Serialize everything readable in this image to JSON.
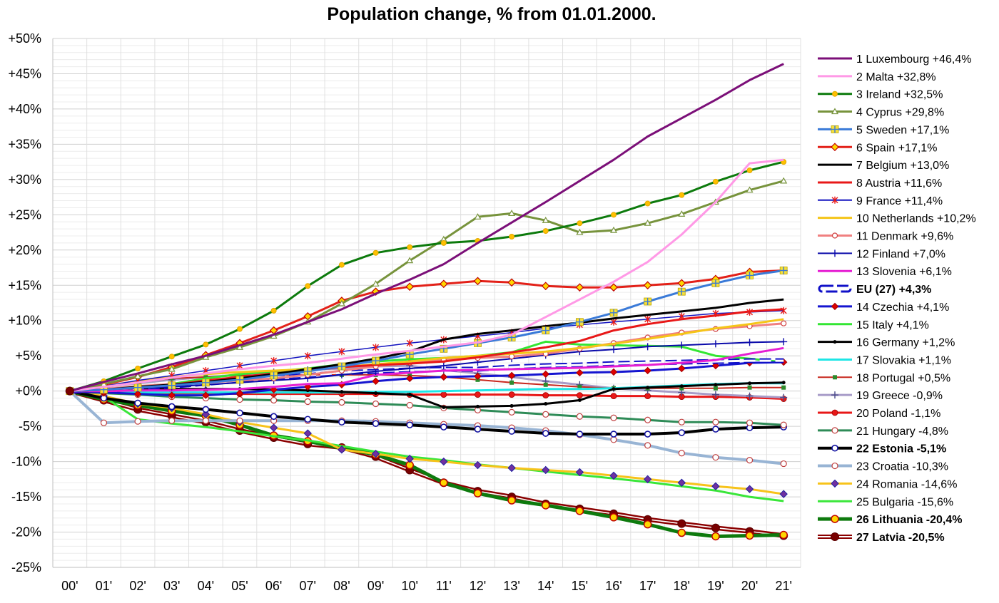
{
  "chart_data": {
    "type": "line",
    "title": "Population change, % from 01.01.2000.",
    "xlabel": "",
    "ylabel": "",
    "categories": [
      "00'",
      "01'",
      "02'",
      "03'",
      "04'",
      "05'",
      "06'",
      "07'",
      "08'",
      "09'",
      "10'",
      "11'",
      "12'",
      "13'",
      "14'",
      "15'",
      "16'",
      "17'",
      "18'",
      "19'",
      "20'",
      "21'"
    ],
    "ylim": [
      -25,
      50
    ],
    "yticks": [
      "+50%",
      "+45%",
      "+40%",
      "+35%",
      "+30%",
      "+25%",
      "+20%",
      "+15%",
      "+10%",
      "+5%",
      "+0%",
      "-5%",
      "-10%",
      "-15%",
      "-20%",
      "-25%"
    ],
    "grid": true,
    "legend_position": "right",
    "series": [
      {
        "label": "1 Luxembourg +46,4%",
        "color": "#7b0f78",
        "marker": "none",
        "width": 3,
        "values": [
          0,
          1.3,
          2.5,
          3.8,
          5.0,
          6.5,
          8.0,
          9.8,
          11.6,
          13.8,
          15.8,
          18.0,
          21.0,
          23.9,
          26.8,
          29.8,
          32.8,
          36.1,
          38.7,
          41.3,
          44.1,
          46.4
        ]
      },
      {
        "label": "2 Malta +32,8%",
        "color": "#ff99e6",
        "marker": "none",
        "width": 3,
        "values": [
          0,
          0.6,
          1.2,
          1.9,
          2.5,
          3.1,
          3.6,
          4.0,
          4.6,
          5.2,
          5.7,
          6.3,
          6.9,
          8.0,
          10.5,
          13.0,
          15.5,
          18.3,
          22.2,
          26.8,
          32.3,
          32.8
        ]
      },
      {
        "label": "3 Ireland +32,5%",
        "color": "#0c7a0c",
        "marker": "circle-yellow",
        "width": 3,
        "values": [
          0,
          1.4,
          3.2,
          4.9,
          6.6,
          8.8,
          11.4,
          14.9,
          17.9,
          19.6,
          20.4,
          21.0,
          21.3,
          21.9,
          22.7,
          23.8,
          25.0,
          26.6,
          27.8,
          29.7,
          31.3,
          32.5
        ]
      },
      {
        "label": "4 Cyprus +29,8%",
        "color": "#77933c",
        "marker": "triangle",
        "width": 3,
        "values": [
          0,
          1.0,
          2.1,
          3.1,
          4.8,
          6.2,
          7.8,
          9.8,
          12.4,
          15.2,
          18.5,
          21.5,
          24.7,
          25.2,
          24.2,
          22.5,
          22.8,
          23.8,
          25.1,
          26.8,
          28.5,
          29.8
        ]
      },
      {
        "label": "5 Sweden +17,1%",
        "color": "#3a7ad8",
        "marker": "square-plus",
        "width": 3,
        "values": [
          0,
          0.2,
          0.5,
          0.8,
          1.2,
          1.6,
          2.2,
          2.8,
          3.5,
          4.3,
          5.2,
          6.0,
          6.8,
          7.6,
          8.6,
          9.8,
          11.1,
          12.7,
          14.1,
          15.3,
          16.4,
          17.1
        ]
      },
      {
        "label": "6 Spain +17,1%",
        "color": "#e32119",
        "marker": "diamond-yellow",
        "width": 3,
        "values": [
          0,
          0.9,
          2.0,
          3.4,
          5.1,
          6.8,
          8.6,
          10.6,
          12.8,
          14.1,
          14.8,
          15.2,
          15.6,
          15.4,
          14.9,
          14.7,
          14.7,
          15.0,
          15.3,
          15.9,
          16.9,
          17.1
        ]
      },
      {
        "label": "7 Belgium +13,0%",
        "color": "#000000",
        "marker": "none",
        "width": 3,
        "values": [
          0,
          0.2,
          0.6,
          0.9,
          1.3,
          1.8,
          2.4,
          3.1,
          3.8,
          4.6,
          5.6,
          7.3,
          8.1,
          8.6,
          9.2,
          9.7,
          10.3,
          10.8,
          11.3,
          11.8,
          12.5,
          13.0
        ]
      },
      {
        "label": "8 Austria +11,6%",
        "color": "#e81818",
        "marker": "none",
        "width": 3,
        "values": [
          0,
          0.2,
          0.5,
          0.9,
          1.5,
          2.0,
          2.5,
          2.9,
          3.4,
          3.7,
          3.9,
          4.2,
          4.8,
          5.5,
          6.2,
          7.1,
          8.6,
          9.5,
          10.2,
          10.7,
          11.3,
          11.6
        ]
      },
      {
        "label": "9 France +11,4%",
        "color": "#1414c0",
        "marker": "star-red",
        "width": 1.5,
        "values": [
          0,
          0.7,
          1.5,
          2.2,
          2.9,
          3.6,
          4.3,
          5.0,
          5.6,
          6.2,
          6.8,
          7.3,
          7.8,
          8.3,
          8.9,
          9.4,
          9.8,
          10.2,
          10.6,
          11.0,
          11.2,
          11.4
        ]
      },
      {
        "label": "10 Netherlands +10,2%",
        "color": "#f5c518",
        "marker": "none",
        "width": 3,
        "values": [
          0,
          0.7,
          1.4,
          2.0,
          2.4,
          2.7,
          2.9,
          3.1,
          3.4,
          3.8,
          4.2,
          4.7,
          5.0,
          5.3,
          5.6,
          6.1,
          6.7,
          7.4,
          8.1,
          8.9,
          9.5,
          10.2
        ]
      },
      {
        "label": "11 Denmark +9,6%",
        "color": "#f08080",
        "marker": "circle-plus",
        "width": 3,
        "values": [
          0,
          0.3,
          0.7,
          1.0,
          1.2,
          1.5,
          1.8,
          2.3,
          2.9,
          3.5,
          4.0,
          4.4,
          4.7,
          4.9,
          5.3,
          6.0,
          6.8,
          7.6,
          8.3,
          8.8,
          9.2,
          9.6
        ]
      },
      {
        "label": "12 Finland +7,0%",
        "color": "#0a0aaa",
        "marker": "plus",
        "width": 2,
        "values": [
          0,
          0.2,
          0.4,
          0.6,
          0.9,
          1.2,
          1.5,
          1.8,
          2.3,
          2.8,
          3.2,
          3.6,
          4.1,
          4.6,
          5.1,
          5.6,
          5.9,
          6.3,
          6.5,
          6.7,
          6.9,
          7.0
        ]
      },
      {
        "label": "13 Slovenia +6,1%",
        "color": "#e61ed2",
        "marker": "none",
        "width": 3,
        "values": [
          0,
          0,
          0.1,
          0.1,
          0.2,
          0.3,
          0.6,
          1.0,
          1.1,
          2.3,
          2.6,
          2.9,
          3.0,
          3.1,
          3.2,
          3.3,
          3.5,
          3.7,
          4.0,
          4.4,
          5.3,
          6.1
        ]
      },
      {
        "label": "EU (27) +4,3%",
        "color": "#1010c8",
        "marker": "none",
        "width": 4,
        "dashed": true,
        "bold": true,
        "text_color": "#1010c8",
        "values": [
          0,
          0.1,
          0.4,
          0.7,
          1.1,
          1.5,
          1.9,
          2.2,
          2.6,
          2.8,
          3.0,
          3.1,
          3.1,
          3.4,
          3.6,
          3.7,
          3.9,
          4.0,
          4.1,
          4.2,
          4.3,
          4.3
        ]
      },
      {
        "label": "14 Czechia +4,1%",
        "color": "#1515d0",
        "marker": "diamond-red",
        "width": 3,
        "values": [
          0,
          -0.2,
          -0.4,
          -0.6,
          -0.6,
          -0.3,
          0.2,
          0.6,
          0.9,
          1.4,
          1.8,
          2.0,
          2.1,
          2.2,
          2.4,
          2.6,
          2.7,
          2.9,
          3.2,
          3.6,
          4.0,
          4.1
        ]
      },
      {
        "label": "15 Italy +4,1%",
        "color": "#33e633",
        "marker": "none",
        "width": 3,
        "values": [
          0,
          -0.1,
          0.5,
          1.0,
          1.8,
          2.4,
          2.8,
          3.2,
          3.8,
          4.2,
          4.5,
          4.7,
          5.0,
          5.5,
          7.0,
          6.6,
          6.5,
          6.4,
          6.3,
          5.0,
          4.6,
          4.1
        ]
      },
      {
        "label": "16 Germany +1,2%",
        "color": "#000000",
        "marker": "dot",
        "width": 3,
        "values": [
          0,
          0.2,
          0.3,
          0.3,
          0.3,
          0.3,
          0.2,
          0.1,
          -0.1,
          -0.3,
          -0.5,
          -2.3,
          -2.2,
          -2.1,
          -1.8,
          -1.3,
          0.3,
          0.5,
          0.7,
          0.9,
          1.1,
          1.2
        ]
      },
      {
        "label": "17 Slovakia +1,1%",
        "color": "#1ee6e6",
        "marker": "none",
        "width": 3,
        "values": [
          0,
          -0.2,
          -0.2,
          -0.2,
          -0.2,
          -0.2,
          -0.2,
          -0.2,
          -0.2,
          -0.1,
          -0.1,
          0,
          0.1,
          0.2,
          0.3,
          0.3,
          0.4,
          0.6,
          0.8,
          1.0,
          1.1,
          1.1
        ]
      },
      {
        "label": "18 Portugal +0,5%",
        "color": "#c8281e",
        "marker": "square-green",
        "width": 2,
        "values": [
          0,
          0.6,
          1.2,
          1.8,
          2.0,
          2.2,
          2.3,
          2.3,
          2.3,
          2.3,
          2.2,
          2.0,
          1.6,
          1.2,
          0.9,
          0.6,
          0.4,
          0.4,
          0.4,
          0.4,
          0.5,
          0.5
        ]
      },
      {
        "label": "19 Greece -0,9%",
        "color": "#a89cc8",
        "marker": "plus",
        "width": 3,
        "values": [
          0,
          0.6,
          1.1,
          1.6,
          2.0,
          2.3,
          2.7,
          3.0,
          3.2,
          3.5,
          3.6,
          3.0,
          2.5,
          2.0,
          1.4,
          0.9,
          0.4,
          0.1,
          -0.2,
          -0.5,
          -0.7,
          -0.9
        ]
      },
      {
        "label": "20 Poland -1,1%",
        "color": "#e81818",
        "marker": "circle-red",
        "width": 3,
        "values": [
          0,
          -0.2,
          -0.2,
          -0.3,
          -0.3,
          -0.4,
          -0.4,
          -0.4,
          -0.4,
          -0.4,
          -0.5,
          -0.5,
          -0.5,
          -0.5,
          -0.6,
          -0.6,
          -0.7,
          -0.7,
          -0.8,
          -0.8,
          -0.9,
          -1.1
        ]
      },
      {
        "label": "21 Hungary -4,8%",
        "color": "#2e8b57",
        "marker": "circle-white",
        "width": 3,
        "values": [
          0,
          -0.3,
          -0.5,
          -0.8,
          -1.0,
          -1.2,
          -1.3,
          -1.5,
          -1.6,
          -1.8,
          -2.0,
          -2.4,
          -2.7,
          -3.0,
          -3.3,
          -3.6,
          -3.8,
          -4.1,
          -4.4,
          -4.4,
          -4.5,
          -4.8
        ]
      },
      {
        "label": "22 Estonia -5,1%",
        "color": "#000000",
        "marker": "circle-white-blue",
        "width": 4,
        "bold": true,
        "values": [
          0,
          -1.0,
          -1.7,
          -2.2,
          -2.6,
          -3.1,
          -3.6,
          -4.0,
          -4.4,
          -4.6,
          -4.8,
          -5.1,
          -5.4,
          -5.7,
          -6.0,
          -6.1,
          -6.1,
          -6.1,
          -5.9,
          -5.4,
          -5.2,
          -5.1
        ]
      },
      {
        "label": "23 Croatia -10,3%",
        "color": "#98b4d4",
        "marker": "circle-white",
        "width": 4,
        "values": [
          0,
          -4.5,
          -4.3,
          -4.2,
          -4.2,
          -4.2,
          -4.2,
          -4.2,
          -4.2,
          -4.3,
          -4.5,
          -4.7,
          -4.9,
          -5.2,
          -5.6,
          -6.2,
          -6.9,
          -7.7,
          -8.8,
          -9.4,
          -9.8,
          -10.3
        ]
      },
      {
        "label": "24 Romania -14,6%",
        "color": "#f7c31a",
        "marker": "diamond-purple",
        "width": 3,
        "values": [
          0,
          -0.7,
          -1.8,
          -2.4,
          -3.3,
          -4.4,
          -5.2,
          -6.0,
          -8.3,
          -8.9,
          -9.6,
          -10.0,
          -10.5,
          -10.9,
          -11.2,
          -11.5,
          -12.0,
          -12.5,
          -13.0,
          -13.5,
          -13.9,
          -14.6
        ]
      },
      {
        "label": "25 Bulgaria -15,6%",
        "color": "#39e639",
        "marker": "none",
        "width": 3,
        "values": [
          0,
          -0.8,
          -4.0,
          -4.6,
          -5.1,
          -5.7,
          -6.4,
          -7.0,
          -7.8,
          -8.6,
          -9.3,
          -9.8,
          -10.4,
          -10.9,
          -11.4,
          -11.9,
          -12.4,
          -12.9,
          -13.5,
          -14.1,
          -15.0,
          -15.6
        ]
      },
      {
        "label": "26 Lithuania -20,4%",
        "color": "#0d7a0d",
        "marker": "circle-yellow-lg",
        "width": 5,
        "bold": true,
        "text_color": "#0d7a0d",
        "values": [
          0,
          -1.2,
          -2.0,
          -2.8,
          -3.5,
          -4.8,
          -6.3,
          -7.1,
          -8.1,
          -9.0,
          -10.5,
          -13.0,
          -14.5,
          -15.5,
          -16.2,
          -17.0,
          -17.9,
          -18.9,
          -20.1,
          -20.6,
          -20.5,
          -20.4
        ]
      },
      {
        "label": "27 Latvia -20,5%",
        "color": "#8b0000",
        "marker": "circle-darkred",
        "width": 5,
        "outline": true,
        "bold": true,
        "text_color": "#c00000",
        "values": [
          0,
          -1.3,
          -2.6,
          -3.5,
          -4.4,
          -5.6,
          -6.6,
          -7.5,
          -8.0,
          -9.3,
          -11.2,
          -13.0,
          -14.2,
          -15.0,
          -16.0,
          -16.7,
          -17.4,
          -18.2,
          -18.8,
          -19.4,
          -19.9,
          -20.5
        ]
      }
    ]
  }
}
